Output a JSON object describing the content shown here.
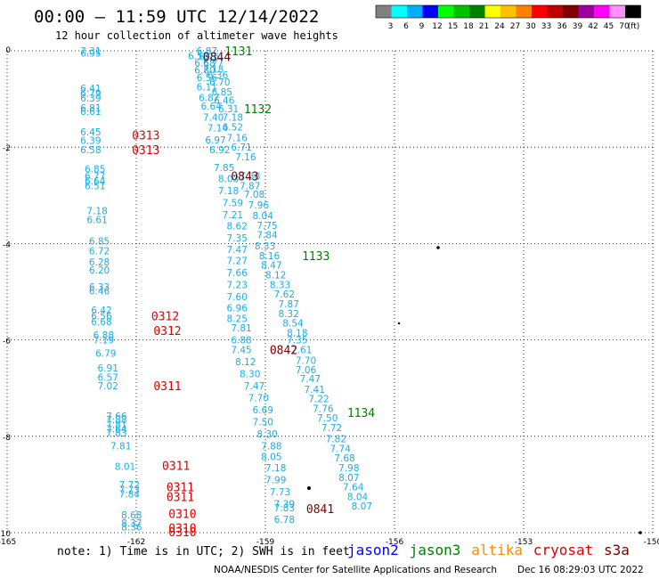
{
  "header": {
    "title": "00:00 – 11:59 UTC 12/14/2022",
    "subtitle": "12 hour collection of altimeter wave heights"
  },
  "colorbar": {
    "unit_label": "(ft)",
    "levels": [
      {
        "label": "3",
        "color": "#808080"
      },
      {
        "label": "6",
        "color": "#00ffff"
      },
      {
        "label": "9",
        "color": "#00b0ff"
      },
      {
        "label": "12",
        "color": "#0000ff"
      },
      {
        "label": "15",
        "color": "#00ff00"
      },
      {
        "label": "18",
        "color": "#00c000"
      },
      {
        "label": "21",
        "color": "#008000"
      },
      {
        "label": "24",
        "color": "#ffff00"
      },
      {
        "label": "27",
        "color": "#ffc000"
      },
      {
        "label": "30",
        "color": "#ff8000"
      },
      {
        "label": "33",
        "color": "#ff0000"
      },
      {
        "label": "36",
        "color": "#c00000"
      },
      {
        "label": "39",
        "color": "#800000"
      },
      {
        "label": "42",
        "color": "#a000a0"
      },
      {
        "label": "45",
        "color": "#ff00ff"
      },
      {
        "label": "70",
        "color": "#ff90ff"
      },
      {
        "label": "",
        "color": "#000000"
      }
    ]
  },
  "map": {
    "lon_range": [
      -165,
      -150
    ],
    "lat_range": [
      -10,
      0
    ],
    "x_ticks": [
      {
        "v": -165,
        "label": "-165"
      },
      {
        "v": -162,
        "label": "-162"
      },
      {
        "v": -159,
        "label": "-159"
      },
      {
        "v": -156,
        "label": "-156"
      },
      {
        "v": -153,
        "label": "-153"
      },
      {
        "v": -150,
        "label": "-150"
      }
    ],
    "y_ticks": [
      {
        "v": 0,
        "label": "0"
      },
      {
        "v": -2,
        "label": "-2"
      },
      {
        "v": -4,
        "label": "-4"
      },
      {
        "v": -6,
        "label": "-6"
      },
      {
        "v": -8,
        "label": "-8"
      },
      {
        "v": -10,
        "label": "-10"
      }
    ],
    "grid": true,
    "colors": {
      "swh": "#1aaee8",
      "jason3": "#008000",
      "cryosat": "#e00000",
      "s3a": "#800000"
    }
  },
  "chart_data": {
    "type": "scatter",
    "swh_observations": [
      {
        "lon": -163.3,
        "lat": -0.0,
        "v": "7.31"
      },
      {
        "lon": -163.3,
        "lat": -0.05,
        "v": "6.95"
      },
      {
        "lon": -163.3,
        "lat": -0.78,
        "v": "6.41"
      },
      {
        "lon": -163.3,
        "lat": -0.88,
        "v": "6.79"
      },
      {
        "lon": -163.3,
        "lat": -0.98,
        "v": "6.39"
      },
      {
        "lon": -163.3,
        "lat": -1.18,
        "v": "6.81"
      },
      {
        "lon": -163.3,
        "lat": -1.26,
        "v": "6.61"
      },
      {
        "lon": -163.3,
        "lat": -1.68,
        "v": "6.45"
      },
      {
        "lon": -163.3,
        "lat": -1.86,
        "v": "6.39"
      },
      {
        "lon": -163.3,
        "lat": -2.05,
        "v": "6.58"
      },
      {
        "lon": -163.2,
        "lat": -2.45,
        "v": "6.85"
      },
      {
        "lon": -163.2,
        "lat": -2.6,
        "v": "6.77"
      },
      {
        "lon": -163.2,
        "lat": -2.7,
        "v": "6.64"
      },
      {
        "lon": -163.2,
        "lat": -2.8,
        "v": "6.51"
      },
      {
        "lon": -163.15,
        "lat": -3.32,
        "v": "7.18"
      },
      {
        "lon": -163.15,
        "lat": -3.5,
        "v": "6.61"
      },
      {
        "lon": -163.1,
        "lat": -3.95,
        "v": "6.85"
      },
      {
        "lon": -163.1,
        "lat": -4.15,
        "v": "6.72"
      },
      {
        "lon": -163.1,
        "lat": -4.38,
        "v": "6.28"
      },
      {
        "lon": -163.1,
        "lat": -4.55,
        "v": "6.20"
      },
      {
        "lon": -163.1,
        "lat": -4.9,
        "v": "6.33"
      },
      {
        "lon": -163.1,
        "lat": -4.98,
        "v": "6.46"
      },
      {
        "lon": -163.05,
        "lat": -5.38,
        "v": "6.42"
      },
      {
        "lon": -163.05,
        "lat": -5.5,
        "v": "6.56"
      },
      {
        "lon": -163.05,
        "lat": -5.62,
        "v": "6.68"
      },
      {
        "lon": -163.0,
        "lat": -5.9,
        "v": "6.88"
      },
      {
        "lon": -163.0,
        "lat": -6.0,
        "v": "7.19"
      },
      {
        "lon": -162.95,
        "lat": -6.28,
        "v": "6.79"
      },
      {
        "lon": -162.9,
        "lat": -6.58,
        "v": "6.91"
      },
      {
        "lon": -162.9,
        "lat": -6.77,
        "v": "6.57"
      },
      {
        "lon": -162.9,
        "lat": -6.95,
        "v": "7.02"
      },
      {
        "lon": -162.7,
        "lat": -7.58,
        "v": "7.66"
      },
      {
        "lon": -162.7,
        "lat": -7.65,
        "v": "7.88"
      },
      {
        "lon": -162.7,
        "lat": -7.75,
        "v": "7.81"
      },
      {
        "lon": -162.7,
        "lat": -7.85,
        "v": "7.64"
      },
      {
        "lon": -162.7,
        "lat": -7.93,
        "v": "7.83"
      },
      {
        "lon": -162.6,
        "lat": -8.2,
        "v": "7.81"
      },
      {
        "lon": -162.5,
        "lat": -8.62,
        "v": "8.01"
      },
      {
        "lon": -162.4,
        "lat": -9.0,
        "v": "7.72"
      },
      {
        "lon": -162.4,
        "lat": -9.1,
        "v": "7.73"
      },
      {
        "lon": -162.4,
        "lat": -9.2,
        "v": "7.84"
      },
      {
        "lon": -162.35,
        "lat": -9.63,
        "v": "8.68"
      },
      {
        "lon": -162.35,
        "lat": -9.8,
        "v": "8.37"
      },
      {
        "lon": -162.35,
        "lat": -9.88,
        "v": "8.36"
      },
      {
        "lon": -160.6,
        "lat": 0.0,
        "v": "6.87"
      },
      {
        "lon": -160.8,
        "lat": -0.1,
        "v": "6.58"
      },
      {
        "lon": -160.55,
        "lat": -0.12,
        "v": "6.76"
      },
      {
        "lon": -160.65,
        "lat": -0.25,
        "v": "6.68"
      },
      {
        "lon": -160.45,
        "lat": -0.24,
        "v": "6.77"
      },
      {
        "lon": -160.65,
        "lat": -0.4,
        "v": "6.80"
      },
      {
        "lon": -160.45,
        "lat": -0.38,
        "v": "7.18"
      },
      {
        "lon": -160.6,
        "lat": -0.55,
        "v": "6.56"
      },
      {
        "lon": -160.35,
        "lat": -0.5,
        "v": "6.36"
      },
      {
        "lon": -160.3,
        "lat": -0.65,
        "v": "6.70"
      },
      {
        "lon": -160.6,
        "lat": -0.75,
        "v": "6.11"
      },
      {
        "lon": -160.25,
        "lat": -0.85,
        "v": "6.85"
      },
      {
        "lon": -160.55,
        "lat": -0.97,
        "v": "6.87"
      },
      {
        "lon": -160.2,
        "lat": -1.03,
        "v": "6.46"
      },
      {
        "lon": -160.5,
        "lat": -1.15,
        "v": "6.64"
      },
      {
        "lon": -160.1,
        "lat": -1.2,
        "v": "6.31"
      },
      {
        "lon": -160.45,
        "lat": -1.38,
        "v": "7.40"
      },
      {
        "lon": -160.0,
        "lat": -1.38,
        "v": "7.18"
      },
      {
        "lon": -160.35,
        "lat": -1.6,
        "v": "7.14"
      },
      {
        "lon": -160.0,
        "lat": -1.58,
        "v": "6.52"
      },
      {
        "lon": -159.9,
        "lat": -1.8,
        "v": "7.16"
      },
      {
        "lon": -160.4,
        "lat": -1.85,
        "v": "6.97"
      },
      {
        "lon": -159.8,
        "lat": -2.0,
        "v": "6.71"
      },
      {
        "lon": -160.3,
        "lat": -2.05,
        "v": "6.92"
      },
      {
        "lon": -159.7,
        "lat": -2.2,
        "v": "7.16"
      },
      {
        "lon": -160.2,
        "lat": -2.42,
        "v": "7.85"
      },
      {
        "lon": -159.6,
        "lat": -2.6,
        "v": "7.38"
      },
      {
        "lon": -160.1,
        "lat": -2.65,
        "v": "8.03"
      },
      {
        "lon": -159.6,
        "lat": -2.8,
        "v": "7.87"
      },
      {
        "lon": -160.1,
        "lat": -2.9,
        "v": "7.18"
      },
      {
        "lon": -159.5,
        "lat": -2.98,
        "v": "7.08"
      },
      {
        "lon": -160.0,
        "lat": -3.15,
        "v": "7.59"
      },
      {
        "lon": -159.4,
        "lat": -3.2,
        "v": "7.96"
      },
      {
        "lon": -160.0,
        "lat": -3.4,
        "v": "7.21"
      },
      {
        "lon": -159.3,
        "lat": -3.42,
        "v": "8.04"
      },
      {
        "lon": -159.2,
        "lat": -3.62,
        "v": "7.75"
      },
      {
        "lon": -159.9,
        "lat": -3.63,
        "v": "8.62"
      },
      {
        "lon": -159.2,
        "lat": -3.82,
        "v": "7.84"
      },
      {
        "lon": -159.9,
        "lat": -3.88,
        "v": "7.35"
      },
      {
        "lon": -159.25,
        "lat": -4.05,
        "v": "8.33"
      },
      {
        "lon": -159.9,
        "lat": -4.12,
        "v": "7.47"
      },
      {
        "lon": -159.15,
        "lat": -4.25,
        "v": "8.16"
      },
      {
        "lon": -159.9,
        "lat": -4.35,
        "v": "7.27"
      },
      {
        "lon": -159.1,
        "lat": -4.45,
        "v": "8.47"
      },
      {
        "lon": -159.9,
        "lat": -4.6,
        "v": "7.66"
      },
      {
        "lon": -159.0,
        "lat": -4.65,
        "v": "8.12"
      },
      {
        "lon": -159.9,
        "lat": -4.85,
        "v": "7.23"
      },
      {
        "lon": -158.9,
        "lat": -4.85,
        "v": "8.33"
      },
      {
        "lon": -158.8,
        "lat": -5.05,
        "v": "7.62"
      },
      {
        "lon": -159.9,
        "lat": -5.1,
        "v": "7.60"
      },
      {
        "lon": -158.7,
        "lat": -5.25,
        "v": "7.87"
      },
      {
        "lon": -159.9,
        "lat": -5.33,
        "v": "6.96"
      },
      {
        "lon": -158.7,
        "lat": -5.45,
        "v": "8.32"
      },
      {
        "lon": -159.9,
        "lat": -5.55,
        "v": "8.25"
      },
      {
        "lon": -158.6,
        "lat": -5.65,
        "v": "8.54"
      },
      {
        "lon": -159.8,
        "lat": -5.75,
        "v": "7.81"
      },
      {
        "lon": -158.5,
        "lat": -5.85,
        "v": "8.18"
      },
      {
        "lon": -159.8,
        "lat": -6.0,
        "v": "6.88"
      },
      {
        "lon": -158.5,
        "lat": -6.0,
        "v": "7.35"
      },
      {
        "lon": -159.8,
        "lat": -6.2,
        "v": "7.45"
      },
      {
        "lon": -158.4,
        "lat": -6.2,
        "v": "7.61"
      },
      {
        "lon": -159.7,
        "lat": -6.45,
        "v": "8.12"
      },
      {
        "lon": -158.3,
        "lat": -6.42,
        "v": "7.70"
      },
      {
        "lon": -159.6,
        "lat": -6.7,
        "v": "8.30"
      },
      {
        "lon": -158.3,
        "lat": -6.62,
        "v": "7.06"
      },
      {
        "lon": -158.2,
        "lat": -6.8,
        "v": "7.47"
      },
      {
        "lon": -159.5,
        "lat": -6.95,
        "v": "7.47"
      },
      {
        "lon": -158.1,
        "lat": -7.02,
        "v": "7.41"
      },
      {
        "lon": -159.4,
        "lat": -7.2,
        "v": "7.70"
      },
      {
        "lon": -158.0,
        "lat": -7.22,
        "v": "7.22"
      },
      {
        "lon": -159.3,
        "lat": -7.45,
        "v": "6.69"
      },
      {
        "lon": -157.9,
        "lat": -7.42,
        "v": "7.76"
      },
      {
        "lon": -159.3,
        "lat": -7.7,
        "v": "7.50"
      },
      {
        "lon": -157.8,
        "lat": -7.62,
        "v": "7.50"
      },
      {
        "lon": -157.7,
        "lat": -7.82,
        "v": "7.72"
      },
      {
        "lon": -159.2,
        "lat": -7.95,
        "v": "8.30"
      },
      {
        "lon": -157.6,
        "lat": -8.05,
        "v": "7.82"
      },
      {
        "lon": -159.1,
        "lat": -8.2,
        "v": "7.88"
      },
      {
        "lon": -157.5,
        "lat": -8.25,
        "v": "7.74"
      },
      {
        "lon": -159.1,
        "lat": -8.42,
        "v": "8.05"
      },
      {
        "lon": -157.4,
        "lat": -8.45,
        "v": "7.68"
      },
      {
        "lon": -159.0,
        "lat": -8.65,
        "v": "7.18"
      },
      {
        "lon": -157.3,
        "lat": -8.65,
        "v": "7.98"
      },
      {
        "lon": -159.0,
        "lat": -8.9,
        "v": "7.99"
      },
      {
        "lon": -157.3,
        "lat": -8.85,
        "v": "8.07"
      },
      {
        "lon": -157.2,
        "lat": -9.05,
        "v": "7.64"
      },
      {
        "lon": -158.9,
        "lat": -9.15,
        "v": "7.73"
      },
      {
        "lon": -157.1,
        "lat": -9.25,
        "v": "8.04"
      },
      {
        "lon": -158.8,
        "lat": -9.4,
        "v": "7.39"
      },
      {
        "lon": -158.8,
        "lat": -9.48,
        "v": "7.83"
      },
      {
        "lon": -157.0,
        "lat": -9.45,
        "v": "8.07"
      },
      {
        "lon": -158.8,
        "lat": -9.72,
        "v": "6.78"
      }
    ],
    "pass_labels": [
      {
        "lon": -159.95,
        "lat": 0.0,
        "t": "1131",
        "sat": "jason3"
      },
      {
        "lon": -160.45,
        "lat": -0.12,
        "t": "0844",
        "sat": "s3a"
      },
      {
        "lon": -159.5,
        "lat": -1.2,
        "t": "1132",
        "sat": "jason3"
      },
      {
        "lon": -162.1,
        "lat": -1.75,
        "t": "0313",
        "sat": "cryosat"
      },
      {
        "lon": -162.1,
        "lat": -2.05,
        "t": "0313",
        "sat": "cryosat"
      },
      {
        "lon": -159.8,
        "lat": -2.6,
        "t": "0843",
        "sat": "s3a"
      },
      {
        "lon": -158.15,
        "lat": -4.25,
        "t": "1133",
        "sat": "jason3"
      },
      {
        "lon": -161.65,
        "lat": -5.5,
        "t": "0312",
        "sat": "cryosat"
      },
      {
        "lon": -161.6,
        "lat": -5.8,
        "t": "0312",
        "sat": "cryosat"
      },
      {
        "lon": -158.9,
        "lat": -6.2,
        "t": "0842",
        "sat": "s3a"
      },
      {
        "lon": -161.6,
        "lat": -6.95,
        "t": "0311",
        "sat": "cryosat"
      },
      {
        "lon": -157.1,
        "lat": -7.5,
        "t": "1134",
        "sat": "jason3"
      },
      {
        "lon": -161.4,
        "lat": -8.6,
        "t": "0311",
        "sat": "cryosat"
      },
      {
        "lon": -161.3,
        "lat": -9.05,
        "t": "0311",
        "sat": "cryosat"
      },
      {
        "lon": -161.3,
        "lat": -9.25,
        "t": "0311",
        "sat": "cryosat"
      },
      {
        "lon": -161.25,
        "lat": -9.6,
        "t": "0310",
        "sat": "cryosat"
      },
      {
        "lon": -161.25,
        "lat": -9.9,
        "t": "0310",
        "sat": "cryosat"
      },
      {
        "lon": -161.25,
        "lat": -9.98,
        "t": "0310",
        "sat": "cryosat"
      },
      {
        "lon": -158.05,
        "lat": -9.5,
        "t": "0841",
        "sat": "s3a"
      }
    ]
  },
  "footer": {
    "note": "note: 1) Time is in UTC; 2) SWH is in feet",
    "legend": [
      {
        "label": "jason2",
        "color": "#0000ff"
      },
      {
        "label": "jason3",
        "color": "#008000"
      },
      {
        "label": "altika",
        "color": "#ff8c00"
      },
      {
        "label": "cryosat",
        "color": "#e00000"
      },
      {
        "label": "s3a",
        "color": "#800000"
      }
    ],
    "credit": "NOAA/NESDIS Center for Satellite Applications and Research",
    "timestamp": "Dec 16 08:29:03 UTC 2022"
  }
}
